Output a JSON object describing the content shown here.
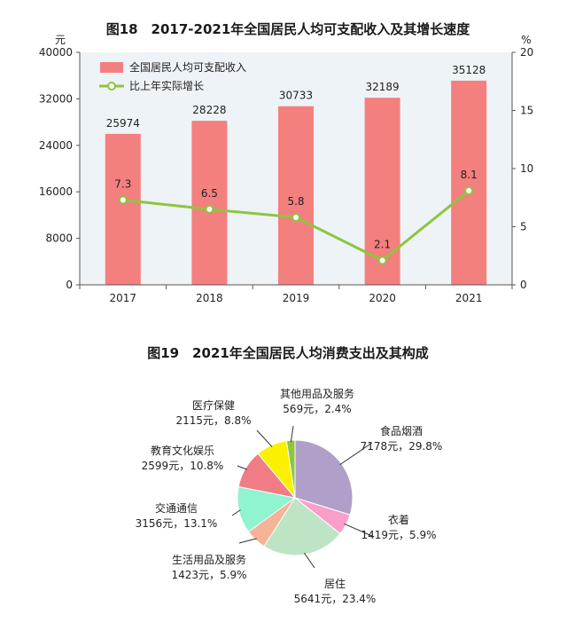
{
  "chart_data": [
    {
      "type": "bar",
      "title": "图18　2017-2021年全国居民人均可支配收入及其增长速度",
      "left_unit": "元",
      "right_unit": "%",
      "categories": [
        "2017",
        "2018",
        "2019",
        "2020",
        "2021"
      ],
      "left_ticks": [
        "0",
        "8000",
        "16000",
        "24000",
        "32000",
        "40000"
      ],
      "right_ticks": [
        "0",
        "5",
        "10",
        "15",
        "20"
      ],
      "ylim_left": [
        0,
        40000
      ],
      "ylim_right": [
        0,
        20
      ],
      "grid": false,
      "legend_position": "top-left",
      "series": [
        {
          "name": "全国居民人均可支配收入",
          "type": "bar",
          "axis": "left",
          "color": "#f47f7f",
          "values": [
            25974,
            28228,
            30733,
            32189,
            35128
          ],
          "labels": [
            "25974",
            "28228",
            "30733",
            "32189",
            "35128"
          ]
        },
        {
          "name": "比上年实际增长",
          "type": "line",
          "axis": "right",
          "color": "#8dc63f",
          "values": [
            7.3,
            6.5,
            5.8,
            2.1,
            8.1
          ],
          "labels": [
            "7.3",
            "6.5",
            "5.8",
            "2.1",
            "8.1"
          ]
        }
      ]
    },
    {
      "type": "pie",
      "title": "图19　2021年全国居民人均消费支出及其构成",
      "slices": [
        {
          "name": "食品烟酒",
          "value": 7178,
          "percent": 29.8,
          "detail": "7178元，29.8%",
          "color": "#b09fc8"
        },
        {
          "name": "衣着",
          "value": 1419,
          "percent": 5.9,
          "detail": "1419元，5.9%",
          "color": "#f99fc9"
        },
        {
          "name": "居住",
          "value": 5641,
          "percent": 23.4,
          "detail": "5641元，23.4%",
          "color": "#bde5c5"
        },
        {
          "name": "生活用品及服务",
          "value": 1423,
          "percent": 5.9,
          "detail": "1423元，5.9%",
          "color": "#f5b397"
        },
        {
          "name": "交通通信",
          "value": 3156,
          "percent": 13.1,
          "detail": "3156元，13.1%",
          "color": "#8ff4cf"
        },
        {
          "name": "教育文化娱乐",
          "value": 2599,
          "percent": 10.8,
          "detail": "2599元，10.8%",
          "color": "#f07c85"
        },
        {
          "name": "医疗保健",
          "value": 2115,
          "percent": 8.8,
          "detail": "2115元，8.8%",
          "color": "#fbf000"
        },
        {
          "name": "其他用品及服务",
          "value": 569,
          "percent": 2.4,
          "detail": "569元，2.4%",
          "color": "#8dc63f"
        }
      ]
    }
  ]
}
